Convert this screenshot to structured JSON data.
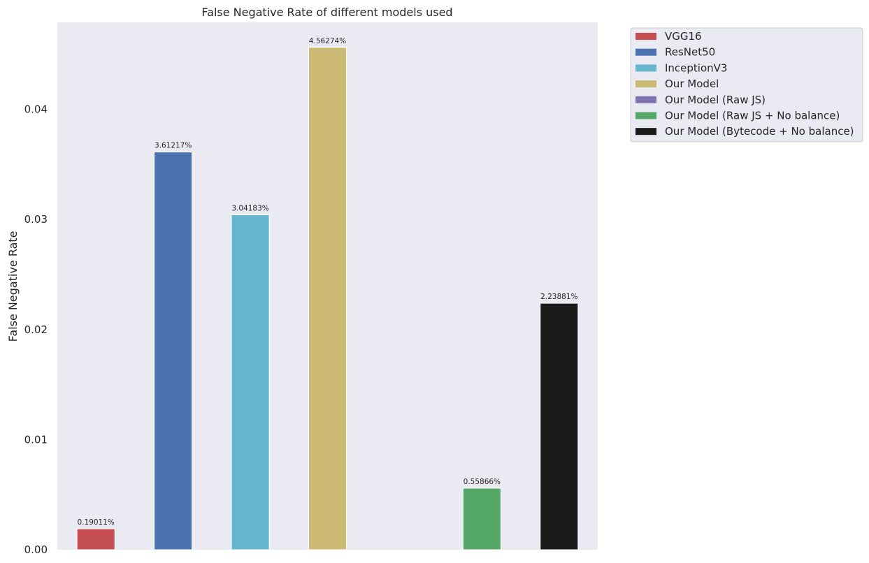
{
  "chart_data": {
    "type": "bar",
    "title": "False Negative Rate of different models used",
    "xlabel": "",
    "ylabel": "False Negative Rate",
    "ylim": [
      0,
      0.0479
    ],
    "yticks": [
      0.0,
      0.01,
      0.02,
      0.03,
      0.04
    ],
    "ytick_labels": [
      "0.00",
      "0.01",
      "0.02",
      "0.03",
      "0.04"
    ],
    "grid": false,
    "legend_placement": "outside-top-right",
    "background": "#eaeaf2",
    "series": [
      {
        "name": "VGG16",
        "value": 0.0019011,
        "label": "0.19011%",
        "color": "#c44e52"
      },
      {
        "name": "ResNet50",
        "value": 0.0361217,
        "label": "3.61217%",
        "color": "#4c72b0"
      },
      {
        "name": "InceptionV3",
        "value": 0.0304183,
        "label": "3.04183%",
        "color": "#64b5cd"
      },
      {
        "name": "Our Model",
        "value": 0.0456274,
        "label": "4.56274%",
        "color": "#ccb974"
      },
      {
        "name": "Our Model (Raw JS)",
        "value": null,
        "label": "",
        "color": "#8172b2"
      },
      {
        "name": "Our Model (Raw JS + No balance)",
        "value": 0.0055866,
        "label": "0.55866%",
        "color": "#55a868"
      },
      {
        "name": "Our Model (Bytecode + No balance)",
        "value": 0.0223881,
        "label": "2.23881%",
        "color": "#1b1b1b"
      }
    ]
  }
}
